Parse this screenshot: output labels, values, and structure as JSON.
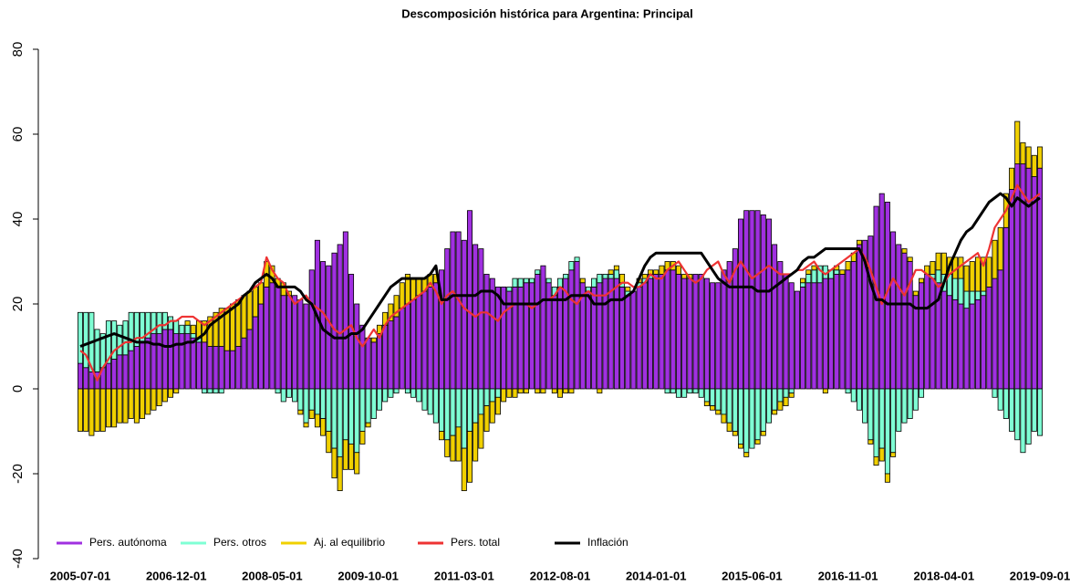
{
  "chart_data": {
    "type": "bar",
    "title": "Descomposición histórica para Argentina: Principal",
    "categories": [
      "2005-07-01",
      null,
      null,
      null,
      null,
      null,
      null,
      null,
      null,
      null,
      null,
      null,
      null,
      null,
      null,
      null,
      null,
      "2006-12-01",
      null,
      null,
      null,
      null,
      null,
      null,
      null,
      null,
      null,
      null,
      null,
      null,
      null,
      null,
      null,
      null,
      "2008-05-01",
      null,
      null,
      null,
      null,
      null,
      null,
      null,
      null,
      null,
      null,
      null,
      null,
      null,
      null,
      null,
      null,
      "2009-10-01",
      null,
      null,
      null,
      null,
      null,
      null,
      null,
      null,
      null,
      null,
      null,
      null,
      null,
      null,
      null,
      null,
      "2011-03-01",
      null,
      null,
      null,
      null,
      null,
      null,
      null,
      null,
      null,
      null,
      null,
      null,
      null,
      null,
      null,
      null,
      "2012-08-01",
      null,
      null,
      null,
      null,
      null,
      null,
      null,
      null,
      null,
      null,
      null,
      null,
      null,
      null,
      null,
      null,
      "2014-01-01",
      null,
      null,
      null,
      null,
      null,
      null,
      null,
      null,
      null,
      null,
      null,
      null,
      null,
      null,
      null,
      null,
      "2015-06-01",
      null,
      null,
      null,
      null,
      null,
      null,
      null,
      null,
      null,
      null,
      null,
      null,
      null,
      null,
      null,
      null,
      "2016-11-01",
      null,
      null,
      null,
      null,
      null,
      null,
      null,
      null,
      null,
      null,
      null,
      null,
      null,
      null,
      null,
      null,
      "2018-04-01",
      null,
      null,
      null,
      null,
      null,
      null,
      null,
      null,
      null,
      null,
      null,
      null,
      null,
      null,
      null,
      null,
      "2019-09-01"
    ],
    "ylim": [
      -40,
      80
    ],
    "yticks": [
      -40,
      -20,
      0,
      20,
      40,
      60,
      80
    ],
    "legend": "bottomleft",
    "series": [
      {
        "name": "Pers. autónoma",
        "type": "bar",
        "color": "#a030e0",
        "values": [
          6,
          5,
          4,
          4,
          5,
          6,
          7,
          8,
          8,
          9,
          10,
          11,
          12,
          13,
          13,
          14,
          14,
          13,
          13,
          13,
          12,
          11,
          11,
          10,
          10,
          10,
          9,
          9,
          10,
          12,
          14,
          17,
          20,
          24,
          25,
          24,
          22,
          22,
          22,
          21,
          20,
          28,
          35,
          30,
          29,
          32,
          34,
          37,
          27,
          20,
          15,
          12,
          11,
          13,
          15,
          16,
          17,
          19,
          20,
          21,
          22,
          23,
          24,
          25,
          28,
          33,
          37,
          37,
          35,
          42,
          34,
          33,
          27,
          26,
          24,
          24,
          23,
          24,
          24,
          25,
          25,
          27,
          29,
          25,
          22,
          24,
          26,
          28,
          30,
          25,
          23,
          24,
          25,
          26,
          26,
          26,
          24,
          22,
          23,
          24,
          25,
          26,
          27,
          27,
          28,
          28,
          27,
          26,
          26,
          27,
          27,
          26,
          25,
          25,
          28,
          30,
          33,
          40,
          42,
          42,
          42,
          41,
          40,
          34,
          30,
          27,
          25,
          23,
          24,
          25,
          25,
          25,
          26,
          26,
          27,
          27,
          28,
          30,
          34,
          35,
          36,
          43,
          46,
          44,
          37,
          34,
          32,
          30,
          22,
          25,
          27,
          26,
          25,
          23,
          22,
          21,
          20,
          19,
          20,
          21,
          22,
          24,
          26,
          28,
          38,
          47,
          53,
          53,
          52,
          50,
          52
        ]
      },
      {
        "name": "Pers. otros",
        "type": "bar",
        "color": "#7fffd4",
        "values": [
          12,
          13,
          14,
          10,
          8,
          10,
          9,
          7,
          8,
          9,
          8,
          7,
          6,
          5,
          5,
          4,
          3,
          3,
          2,
          2,
          1,
          1,
          -1,
          -1,
          -1,
          -1,
          0,
          0,
          0,
          0,
          0,
          0,
          0,
          0,
          0,
          -1,
          -3,
          -2,
          -3,
          -5,
          -8,
          -5,
          -6,
          -7,
          -10,
          -14,
          -16,
          -12,
          -13,
          -15,
          -10,
          -8,
          -7,
          -5,
          -3,
          -2,
          -1,
          0,
          -1,
          -2,
          -3,
          -5,
          -6,
          -8,
          -10,
          -12,
          -11,
          -9,
          -14,
          -10,
          -8,
          -6,
          -4,
          -3,
          -2,
          0,
          1,
          2,
          2,
          1,
          1,
          1,
          0,
          1,
          2,
          2,
          1,
          2,
          1,
          0,
          1,
          2,
          2,
          1,
          1,
          2,
          1,
          1,
          0,
          1,
          1,
          1,
          0,
          0,
          -1,
          -1,
          -2,
          -2,
          -1,
          -1,
          -2,
          -3,
          -4,
          -5,
          -6,
          -8,
          -10,
          -13,
          -15,
          -14,
          -12,
          -10,
          -8,
          -5,
          -3,
          -2,
          -1,
          0,
          1,
          2,
          3,
          4,
          3,
          2,
          1,
          0,
          -1,
          -3,
          -5,
          -8,
          -12,
          -16,
          -14,
          -20,
          -15,
          -10,
          -8,
          -7,
          -5,
          -2,
          0,
          1,
          3,
          4,
          5,
          5,
          6,
          4,
          3,
          2,
          1,
          0,
          -2,
          -5,
          -7,
          -10,
          -12,
          -15,
          -13,
          -10,
          -11
        ]
      },
      {
        "name": "Aj. al equilibrio",
        "type": "bar",
        "color": "#f0d000",
        "values": [
          -10,
          -10,
          -11,
          -10,
          -10,
          -9,
          -9,
          -8,
          -8,
          -7,
          -8,
          -7,
          -6,
          -5,
          -4,
          -3,
          -2,
          -1,
          0,
          1,
          2,
          4,
          5,
          7,
          8,
          9,
          10,
          11,
          11,
          10,
          9,
          7,
          5,
          6,
          4,
          2,
          3,
          1,
          0,
          -1,
          -1,
          -2,
          -3,
          -4,
          -5,
          -7,
          -8,
          -7,
          -6,
          -5,
          -3,
          -1,
          1,
          2,
          3,
          4,
          5,
          6,
          7,
          5,
          4,
          3,
          3,
          2,
          -2,
          -4,
          -6,
          -8,
          -10,
          -12,
          -9,
          -8,
          -6,
          -5,
          -4,
          -3,
          -2,
          -2,
          -1,
          -1,
          0,
          -1,
          -1,
          0,
          -1,
          -2,
          -1,
          -1,
          0,
          1,
          0,
          0,
          -1,
          0,
          1,
          1,
          2,
          1,
          0,
          1,
          1,
          1,
          1,
          2,
          2,
          2,
          2,
          1,
          1,
          0,
          0,
          -1,
          -1,
          -1,
          -2,
          -2,
          -1,
          -1,
          -1,
          0,
          -1,
          -1,
          0,
          -1,
          -2,
          -2,
          -1,
          0,
          1,
          1,
          1,
          0,
          -1,
          0,
          1,
          1,
          2,
          2,
          1,
          0,
          -1,
          -2,
          -3,
          -2,
          -1,
          0,
          1,
          1,
          1,
          1,
          2,
          3,
          4,
          5,
          4,
          5,
          5,
          6,
          7,
          8,
          8,
          7,
          9,
          10,
          8,
          5,
          10,
          5,
          5,
          5,
          5
        ]
      },
      {
        "name": "Pers. total",
        "type": "line",
        "color": "#ee3333",
        "values": [
          9,
          8,
          5,
          2,
          5,
          7,
          9,
          10,
          11,
          11,
          12,
          12,
          13,
          14,
          15,
          15,
          16,
          16,
          17,
          17,
          17,
          16,
          15,
          16,
          17,
          18,
          19,
          20,
          21,
          22,
          23,
          24,
          25,
          31,
          28,
          26,
          25,
          22,
          20,
          21,
          22,
          20,
          19,
          18,
          16,
          14,
          13,
          14,
          15,
          12,
          10,
          12,
          14,
          12,
          15,
          17,
          18,
          19,
          20,
          21,
          22,
          23,
          25,
          23,
          20,
          22,
          23,
          21,
          19,
          18,
          17,
          18,
          18,
          17,
          16,
          18,
          19,
          20,
          20,
          20,
          19,
          20,
          21,
          21,
          22,
          24,
          23,
          21,
          20,
          22,
          23,
          22,
          22,
          22,
          23,
          24,
          25,
          25,
          24,
          24,
          25,
          27,
          26,
          26,
          28,
          29,
          30,
          28,
          26,
          25,
          26,
          28,
          29,
          30,
          27,
          25,
          28,
          30,
          28,
          26,
          27,
          28,
          29,
          28,
          27,
          27,
          27,
          28,
          28,
          29,
          30,
          28,
          27,
          28,
          29,
          30,
          31,
          32,
          33,
          31,
          28,
          24,
          20,
          23,
          26,
          24,
          22,
          25,
          28,
          28,
          27,
          26,
          24,
          25,
          27,
          28,
          29,
          30,
          31,
          32,
          29,
          33,
          38,
          40,
          42,
          45,
          48,
          46,
          44,
          45,
          46
        ]
      },
      {
        "name": "Inflación",
        "type": "line",
        "color": "#000000",
        "values": [
          10,
          10.5,
          11,
          11.5,
          12,
          12.5,
          13,
          12.5,
          12,
          11.5,
          11,
          11,
          11,
          10.5,
          10.5,
          10,
          10,
          10.5,
          10.5,
          11,
          11,
          12,
          13,
          15,
          16,
          17,
          18,
          19,
          20,
          22,
          23,
          25,
          26,
          27,
          26,
          24,
          24,
          24,
          24,
          23,
          21,
          20,
          17,
          14,
          13,
          12,
          12,
          12,
          13,
          13,
          14,
          16,
          18,
          20,
          22,
          24,
          25,
          26,
          26,
          26,
          26,
          26,
          27,
          29,
          21,
          21,
          22,
          22,
          22,
          22,
          22,
          23,
          23,
          23,
          22,
          20,
          20,
          20,
          20,
          20,
          20,
          20,
          21,
          21,
          21,
          21,
          21,
          22,
          22,
          22,
          22,
          20,
          20,
          20,
          21,
          21,
          21,
          22,
          23,
          26,
          29,
          31,
          32,
          32,
          32,
          32,
          32,
          32,
          32,
          32,
          32,
          30,
          28,
          26,
          25,
          24,
          24,
          24,
          24,
          24,
          23,
          23,
          23,
          24,
          25,
          26,
          27,
          28,
          30,
          31,
          31,
          32,
          33,
          33,
          33,
          33,
          33,
          33,
          33,
          30,
          25,
          21,
          21,
          20,
          20,
          20,
          20,
          20,
          19,
          19,
          19,
          20,
          21,
          25,
          29,
          32,
          35,
          37,
          38,
          40,
          42,
          44,
          45,
          46,
          45,
          43,
          45,
          44,
          43,
          44,
          45
        ]
      }
    ]
  }
}
